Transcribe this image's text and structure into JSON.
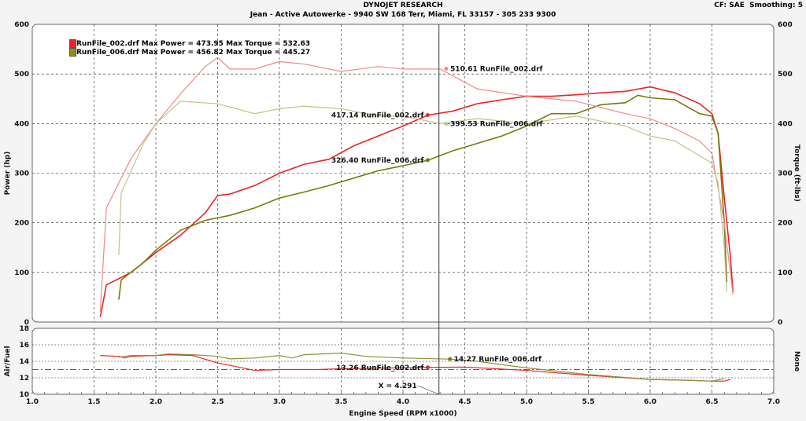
{
  "header": {
    "title": "DYNOJET RESEARCH",
    "subtitle": "Jean - Active Autowerke - 9940 SW 168 Terr, Miami, FL 33157 - 305 233 9300",
    "settings": "CF: SAE  Smoothing: 5"
  },
  "chart_data": [
    {
      "type": "line",
      "ylabel": "Power (hp)",
      "y2label": "Torque (ft-lbs)",
      "ylim": [
        0,
        600
      ],
      "y2lim": [
        0,
        600
      ],
      "xlim": [
        1.0,
        7.0
      ],
      "grid": true,
      "yticks": [
        "0",
        "100",
        "200",
        "300",
        "400",
        "500",
        "600"
      ],
      "legend": [
        "RunFile_002.drf Max Power = 473.95 Max Torque = 532.63",
        "RunFile_006.drf Max Power = 456.82 Max Torque = 445.27"
      ],
      "legend_position": "top-left",
      "series": [
        {
          "name": "RunFile_002.drf Power",
          "color": "#e8262a",
          "points": [
            [
              1.55,
              10
            ],
            [
              1.6,
              75
            ],
            [
              1.8,
              100
            ],
            [
              2.0,
              140
            ],
            [
              2.2,
              175
            ],
            [
              2.4,
              220
            ],
            [
              2.5,
              255
            ],
            [
              2.6,
              258
            ],
            [
              2.8,
              275
            ],
            [
              3.0,
              300
            ],
            [
              3.2,
              318
            ],
            [
              3.4,
              328
            ],
            [
              3.6,
              355
            ],
            [
              3.8,
              375
            ],
            [
              4.0,
              395
            ],
            [
              4.2,
              417
            ],
            [
              4.4,
              425
            ],
            [
              4.6,
              440
            ],
            [
              4.8,
              448
            ],
            [
              5.0,
              455
            ],
            [
              5.2,
              455
            ],
            [
              5.4,
              458
            ],
            [
              5.6,
              462
            ],
            [
              5.8,
              465
            ],
            [
              6.0,
              474
            ],
            [
              6.2,
              462
            ],
            [
              6.4,
              440
            ],
            [
              6.5,
              420
            ],
            [
              6.55,
              380
            ],
            [
              6.6,
              250
            ],
            [
              6.65,
              130
            ],
            [
              6.67,
              60
            ]
          ]
        },
        {
          "name": "RunFile_006.drf Power",
          "color": "#7a7a0a",
          "points": [
            [
              1.7,
              45
            ],
            [
              1.72,
              85
            ],
            [
              1.9,
              120
            ],
            [
              2.0,
              145
            ],
            [
              2.2,
              185
            ],
            [
              2.4,
              205
            ],
            [
              2.6,
              215
            ],
            [
              2.8,
              230
            ],
            [
              3.0,
              250
            ],
            [
              3.2,
              262
            ],
            [
              3.4,
              275
            ],
            [
              3.6,
              290
            ],
            [
              3.8,
              305
            ],
            [
              4.0,
              315
            ],
            [
              4.2,
              326
            ],
            [
              4.4,
              345
            ],
            [
              4.6,
              360
            ],
            [
              4.8,
              375
            ],
            [
              5.0,
              395
            ],
            [
              5.2,
              420
            ],
            [
              5.4,
              420
            ],
            [
              5.6,
              438
            ],
            [
              5.8,
              442
            ],
            [
              5.9,
              457
            ],
            [
              6.0,
              452
            ],
            [
              6.2,
              448
            ],
            [
              6.4,
              420
            ],
            [
              6.5,
              415
            ],
            [
              6.55,
              380
            ],
            [
              6.6,
              200
            ],
            [
              6.62,
              80
            ]
          ]
        },
        {
          "name": "RunFile_002.drf Torque",
          "color": "#f08a8a",
          "points": [
            [
              1.55,
              20
            ],
            [
              1.6,
              230
            ],
            [
              1.8,
              330
            ],
            [
              2.0,
              400
            ],
            [
              2.2,
              460
            ],
            [
              2.4,
              515
            ],
            [
              2.5,
              533
            ],
            [
              2.6,
              510
            ],
            [
              2.8,
              510
            ],
            [
              3.0,
              525
            ],
            [
              3.2,
              520
            ],
            [
              3.5,
              505
            ],
            [
              3.8,
              515
            ],
            [
              4.0,
              510
            ],
            [
              4.3,
              510
            ],
            [
              4.6,
              470
            ],
            [
              5.0,
              455
            ],
            [
              5.4,
              445
            ],
            [
              5.8,
              420
            ],
            [
              6.0,
              410
            ],
            [
              6.2,
              390
            ],
            [
              6.4,
              365
            ],
            [
              6.5,
              340
            ],
            [
              6.6,
              200
            ],
            [
              6.67,
              55
            ]
          ]
        },
        {
          "name": "RunFile_006.drf Torque",
          "color": "#c2c28a",
          "points": [
            [
              1.7,
              135
            ],
            [
              1.72,
              260
            ],
            [
              1.9,
              360
            ],
            [
              2.0,
              400
            ],
            [
              2.2,
              445
            ],
            [
              2.5,
              440
            ],
            [
              2.8,
              420
            ],
            [
              3.0,
              430
            ],
            [
              3.2,
              435
            ],
            [
              3.5,
              430
            ],
            [
              3.8,
              415
            ],
            [
              4.0,
              415
            ],
            [
              4.3,
              400
            ],
            [
              4.6,
              410
            ],
            [
              5.0,
              400
            ],
            [
              5.4,
              415
            ],
            [
              5.8,
              395
            ],
            [
              6.0,
              375
            ],
            [
              6.2,
              365
            ],
            [
              6.4,
              335
            ],
            [
              6.5,
              320
            ],
            [
              6.55,
              280
            ],
            [
              6.6,
              150
            ],
            [
              6.62,
              60
            ]
          ]
        }
      ],
      "annotations": [
        {
          "text": "510.61 RunFile_002.drf",
          "x": 4.35,
          "y": 510.61,
          "color": "#f08a8a",
          "side": "right"
        },
        {
          "text": "417.14 RunFile_002.drf",
          "x": 4.2,
          "y": 417.14,
          "color": "#e8262a",
          "side": "left"
        },
        {
          "text": "399.53 RunFile_006.drf",
          "x": 4.35,
          "y": 399.53,
          "color": "#c2c28a",
          "side": "right"
        },
        {
          "text": "326.40 RunFile_006.drf",
          "x": 4.2,
          "y": 326.4,
          "color": "#7a7a0a",
          "side": "left"
        }
      ]
    },
    {
      "type": "line",
      "ylabel": "Air/Fuel",
      "y2label": "None",
      "ylim": [
        10,
        18
      ],
      "xlim": [
        1.0,
        7.0
      ],
      "grid": true,
      "xlabel": "Engine Speed (RPM x1000)",
      "xticks": [
        "1.0",
        "1.5",
        "2.0",
        "2.5",
        "3.0",
        "3.5",
        "4.0",
        "4.5",
        "5.0",
        "5.5",
        "6.0",
        "6.5",
        "7.0"
      ],
      "yticks": [
        "10",
        "12",
        "14",
        "16",
        "18"
      ],
      "reference_line": 13.0,
      "series": [
        {
          "name": "RunFile_002.drf",
          "color": "#e8262a",
          "points": [
            [
              1.55,
              14.7
            ],
            [
              1.7,
              14.6
            ],
            [
              1.75,
              14.4
            ],
            [
              1.8,
              14.6
            ],
            [
              2.0,
              14.7
            ],
            [
              2.1,
              14.8
            ],
            [
              2.3,
              14.7
            ],
            [
              2.5,
              13.8
            ],
            [
              2.8,
              12.9
            ],
            [
              3.0,
              13.0
            ],
            [
              3.3,
              13.0
            ],
            [
              3.5,
              13.1
            ],
            [
              4.2,
              13.26
            ],
            [
              4.5,
              13.3
            ],
            [
              5.0,
              12.9
            ],
            [
              5.5,
              12.3
            ],
            [
              6.0,
              11.8
            ],
            [
              6.3,
              11.7
            ],
            [
              6.5,
              11.6
            ],
            [
              6.6,
              11.6
            ],
            [
              6.65,
              11.8
            ]
          ]
        },
        {
          "name": "RunFile_006.drf",
          "color": "#8f8f3a",
          "points": [
            [
              1.7,
              14.5
            ],
            [
              1.8,
              14.7
            ],
            [
              2.0,
              14.7
            ],
            [
              2.1,
              14.9
            ],
            [
              2.3,
              14.8
            ],
            [
              2.5,
              14.6
            ],
            [
              2.6,
              14.3
            ],
            [
              2.8,
              14.4
            ],
            [
              3.0,
              14.7
            ],
            [
              3.1,
              14.4
            ],
            [
              3.2,
              14.8
            ],
            [
              3.5,
              15.0
            ],
            [
              3.7,
              14.6
            ],
            [
              4.0,
              14.4
            ],
            [
              4.38,
              14.27
            ],
            [
              4.6,
              14.0
            ],
            [
              5.0,
              13.2
            ],
            [
              5.5,
              12.4
            ],
            [
              6.0,
              11.8
            ],
            [
              6.3,
              11.7
            ],
            [
              6.5,
              11.6
            ],
            [
              6.6,
              11.9
            ]
          ]
        }
      ],
      "annotations": [
        {
          "text": "14.27 RunFile_006.drf",
          "x": 4.38,
          "y": 14.27,
          "color": "#7a7a0a",
          "side": "right"
        },
        {
          "text": "13.26 RunFile_002.drf",
          "x": 4.2,
          "y": 13.26,
          "color": "#e8262a",
          "side": "left"
        }
      ],
      "cursor": {
        "x": 4.291,
        "label": "X = 4.291"
      }
    }
  ]
}
